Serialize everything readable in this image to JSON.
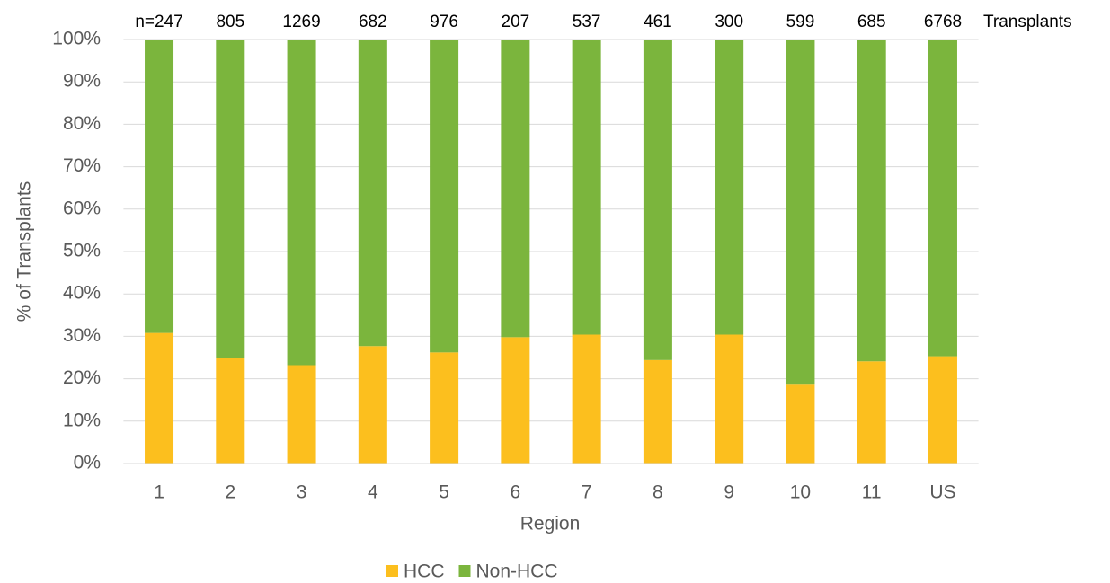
{
  "chart_data": {
    "type": "stacked_bar",
    "categories": [
      "1",
      "2",
      "3",
      "4",
      "5",
      "6",
      "7",
      "8",
      "9",
      "10",
      "11",
      "US"
    ],
    "series": [
      {
        "name": "HCC",
        "color": "#fcbf1e",
        "values": [
          30.8,
          25.0,
          23.2,
          27.7,
          26.2,
          29.8,
          30.4,
          24.4,
          30.4,
          18.6,
          24.1,
          25.3
        ]
      },
      {
        "name": "Non-HCC",
        "color": "#7bb53d",
        "values": [
          69.2,
          75.0,
          76.8,
          72.3,
          73.8,
          70.2,
          69.6,
          75.6,
          69.6,
          81.4,
          75.9,
          74.7
        ]
      }
    ],
    "ylim": [
      0,
      100
    ],
    "yticks": [
      {
        "value": 0,
        "label": "0%"
      },
      {
        "value": 10,
        "label": "10%"
      },
      {
        "value": 20,
        "label": "20%"
      },
      {
        "value": 30,
        "label": "30%"
      },
      {
        "value": 40,
        "label": "40%"
      },
      {
        "value": 50,
        "label": "50%"
      },
      {
        "value": 60,
        "label": "60%"
      },
      {
        "value": 70,
        "label": "70%"
      },
      {
        "value": 80,
        "label": "80%"
      },
      {
        "value": 90,
        "label": "90%"
      },
      {
        "value": 100,
        "label": "100%"
      }
    ],
    "grid": true,
    "x_label": "Region",
    "y_label": "% of Transplants",
    "sample_sizes": {
      "labels": [
        "n=247",
        "805",
        "1269",
        "682",
        "976",
        "207",
        "537",
        "461",
        "300",
        "599",
        "685",
        "6768"
      ],
      "unit": "Transplants"
    },
    "legend": "bottom"
  }
}
